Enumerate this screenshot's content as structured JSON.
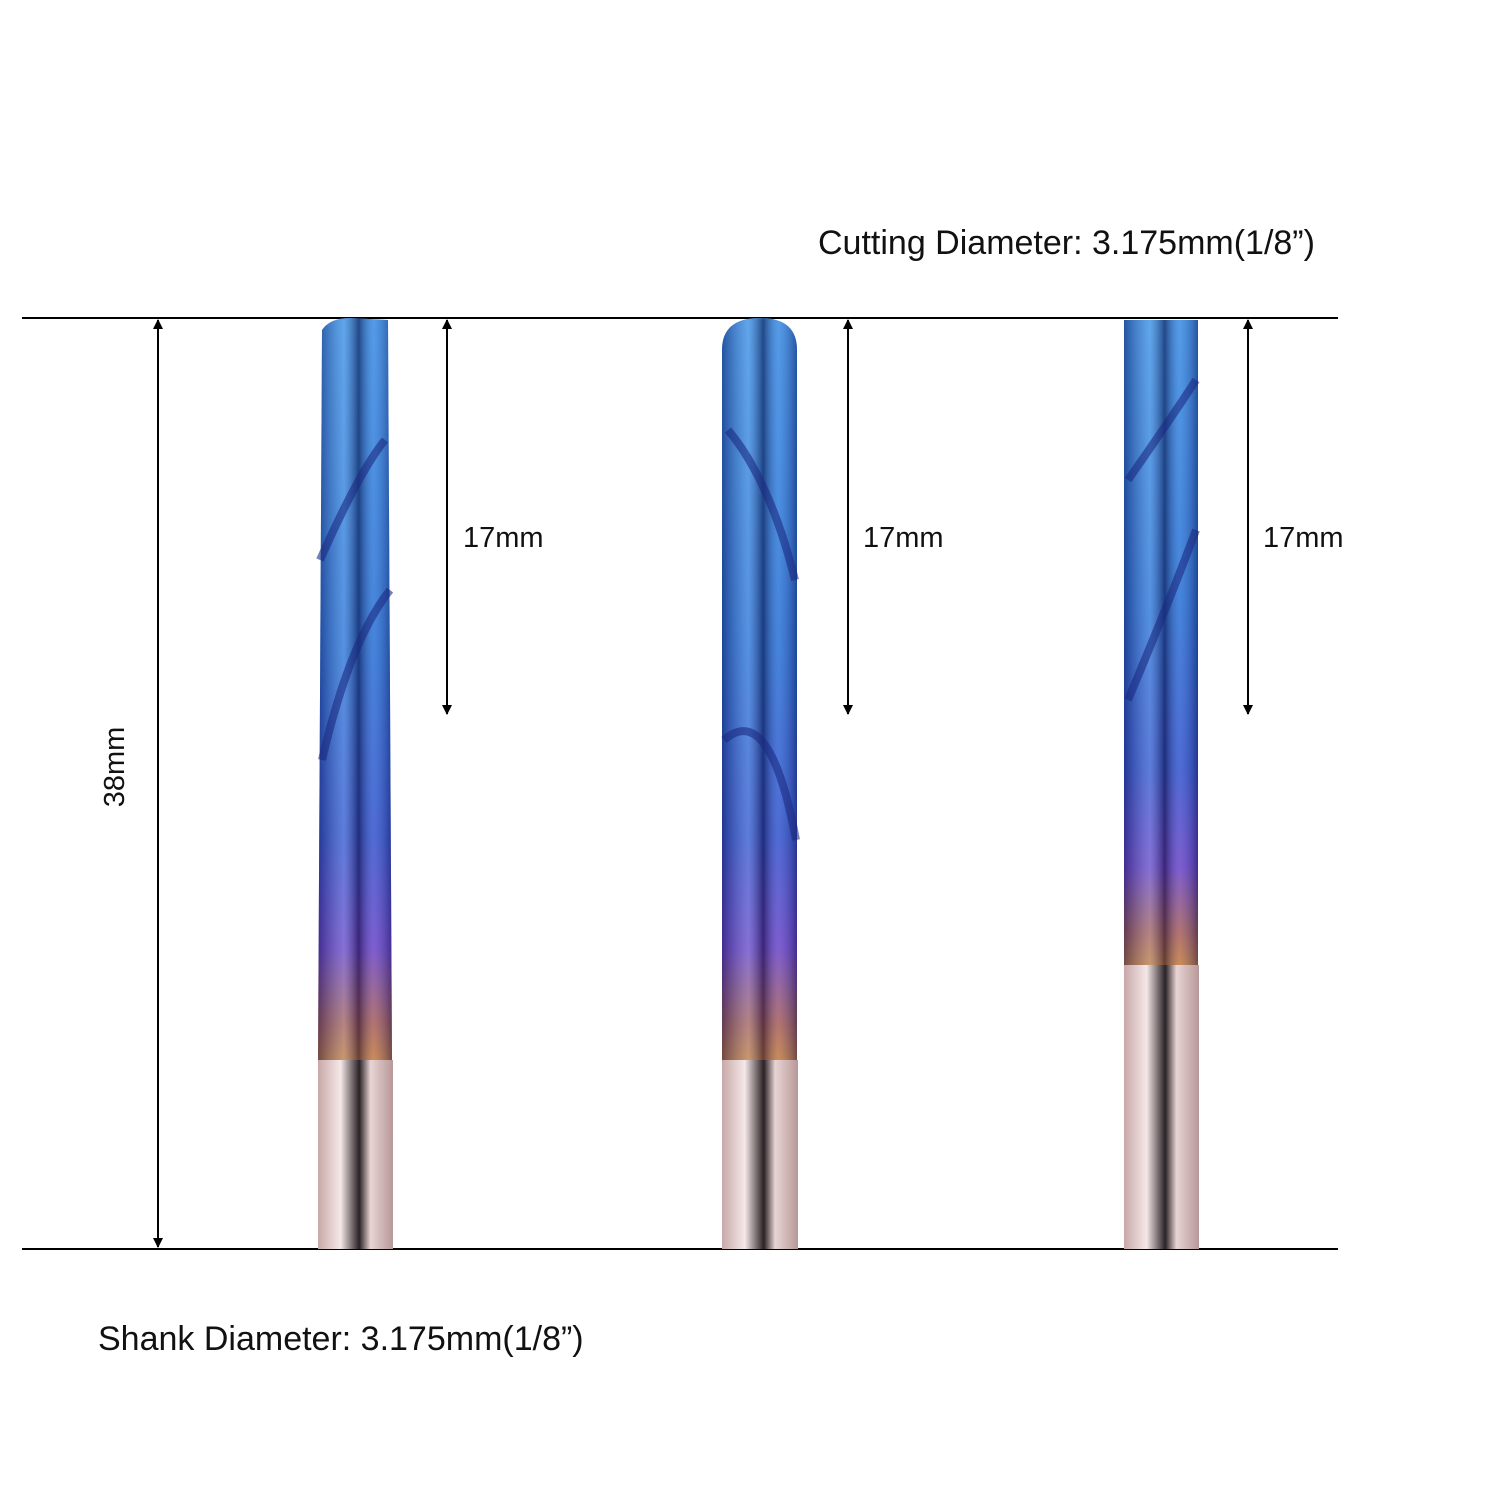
{
  "header": {
    "cutting_diameter": "Cutting Diameter: 3.175mm(1/8”)"
  },
  "dimensions": {
    "overall_length": "38mm",
    "flute_lengths": [
      "17mm",
      "17mm",
      "17mm"
    ]
  },
  "footer": {
    "shank_diameter": "Shank Diameter: 3.175mm(1/8”)"
  }
}
